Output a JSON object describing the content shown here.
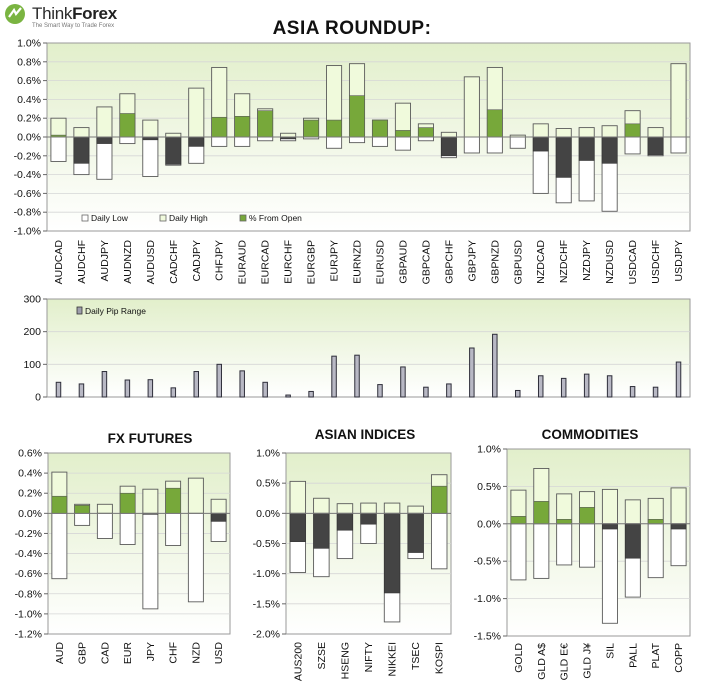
{
  "logo": {
    "brand_think": "Think",
    "brand_forex": "Forex",
    "tagline": "The Smart Way to Trade Forex"
  },
  "title": "ASIA  ROUNDUP:",
  "colors": {
    "high": "#f0fadc",
    "green": "#77a83a",
    "dark": "#444444",
    "plot_bg_top": "#e7f2d2"
  },
  "chart_data": [
    {
      "type": "bar",
      "categories": [
        "AUDCAD",
        "AUDCHF",
        "AUDJPY",
        "AUDNZD",
        "AUDUSD",
        "CADCHF",
        "CADJPY",
        "CHFJPY",
        "EURAUD",
        "EURCAD",
        "EURCHF",
        "EURGBP",
        "EURJPY",
        "EURNZD",
        "EURUSD",
        "GBPAUD",
        "GBPCAD",
        "GBPCHF",
        "GBPJPY",
        "GBPNZD",
        "GBPUSD",
        "NZDCAD",
        "NZDCHF",
        "NZDJPY",
        "NZDUSD",
        "USDCAD",
        "USDCHF",
        "USDJPY"
      ],
      "series": [
        {
          "name": "Daily Low",
          "values": [
            -0.26,
            -0.4,
            -0.45,
            -0.07,
            -0.42,
            -0.3,
            -0.28,
            -0.1,
            -0.1,
            -0.04,
            -0.04,
            -0.02,
            -0.12,
            -0.06,
            -0.1,
            -0.14,
            -0.04,
            -0.22,
            -0.17,
            -0.17,
            -0.12,
            -0.6,
            -0.7,
            -0.68,
            -0.79,
            -0.18,
            -0.2,
            -0.17
          ]
        },
        {
          "name": "Daily High",
          "values": [
            0.2,
            0.1,
            0.32,
            0.46,
            0.18,
            0.04,
            0.52,
            0.74,
            0.46,
            0.3,
            0.04,
            0.2,
            0.76,
            0.78,
            0.18,
            0.36,
            0.14,
            0.05,
            0.64,
            0.74,
            0.02,
            0.14,
            0.09,
            0.1,
            0.12,
            0.28,
            0.1,
            0.78
          ]
        },
        {
          "name": "% From Open",
          "values": [
            0.02,
            -0.28,
            -0.07,
            0.25,
            -0.03,
            -0.29,
            -0.1,
            0.21,
            0.22,
            0.28,
            -0.02,
            0.18,
            0.18,
            0.44,
            0.18,
            0.07,
            0.1,
            -0.2,
            0.0,
            0.29,
            0.0,
            -0.15,
            -0.43,
            -0.25,
            -0.28,
            0.14,
            -0.19,
            0.0
          ]
        }
      ],
      "ylim": [
        -1.0,
        1.0
      ],
      "ytick_labels": [
        "1.0%",
        "0.8%",
        "0.6%",
        "0.4%",
        "0.2%",
        "0.0%",
        "-0.2%",
        "-0.4%",
        "-0.6%",
        "-0.8%",
        "-1.0%"
      ],
      "legend": "bottom-left"
    },
    {
      "type": "bar",
      "categories": [
        "AUDCAD",
        "AUDCHF",
        "AUDJPY",
        "AUDNZD",
        "AUDUSD",
        "CADCHF",
        "CADJPY",
        "CHFJPY",
        "EURAUD",
        "EURCAD",
        "EURCHF",
        "EURGBP",
        "EURJPY",
        "EURNZD",
        "EURUSD",
        "GBPAUD",
        "GBPCAD",
        "GBPCHF",
        "GBPJPY",
        "GBPNZD",
        "GBPUSD",
        "NZDCAD",
        "NZDCHF",
        "NZDJPY",
        "NZDUSD",
        "USDCAD",
        "USDCHF",
        "USDJPY"
      ],
      "series": [
        {
          "name": "Daily Pip Range",
          "values": [
            45,
            40,
            78,
            52,
            53,
            28,
            78,
            100,
            80,
            45,
            6,
            17,
            125,
            128,
            38,
            92,
            30,
            40,
            150,
            192,
            20,
            65,
            57,
            70,
            65,
            32,
            30,
            107
          ]
        }
      ],
      "ylim": [
        0,
        300
      ],
      "ytick_labels": [
        "300",
        "200",
        "100",
        "0"
      ],
      "legend": "top-left"
    },
    {
      "type": "bar",
      "title": "FX FUTURES",
      "categories": [
        "AUD",
        "GBP",
        "CAD",
        "EUR",
        "JPY",
        "CHF",
        "NZD",
        "USD"
      ],
      "series": [
        {
          "name": "Daily Low",
          "values": [
            -0.65,
            -0.12,
            -0.25,
            -0.31,
            -0.95,
            -0.32,
            -0.88,
            -0.28
          ]
        },
        {
          "name": "Daily High",
          "values": [
            0.41,
            0.09,
            0.09,
            0.27,
            0.24,
            0.32,
            0.35,
            0.14
          ]
        },
        {
          "name": "% From Open",
          "values": [
            0.17,
            0.08,
            0.0,
            0.2,
            -0.01,
            0.25,
            0.0,
            -0.08
          ]
        }
      ],
      "ylim": [
        -1.2,
        0.6
      ],
      "ytick_labels": [
        "0.6%",
        "0.4%",
        "0.2%",
        "0.0%",
        "-0.2%",
        "-0.4%",
        "-0.6%",
        "-0.8%",
        "-1.0%",
        "-1.2%"
      ]
    },
    {
      "type": "bar",
      "title": "ASIAN INDICES",
      "categories": [
        "AUS200",
        "SZSE",
        "HSENG",
        "NIFTY",
        "NIKKEI",
        "TSEC",
        "KOSPI"
      ],
      "series": [
        {
          "name": "Daily Low",
          "values": [
            -0.98,
            -1.05,
            -0.75,
            -0.5,
            -1.8,
            -0.75,
            -0.92
          ]
        },
        {
          "name": "Daily High",
          "values": [
            0.53,
            0.25,
            0.16,
            0.17,
            0.17,
            0.12,
            0.64
          ]
        },
        {
          "name": "% From Open",
          "values": [
            -0.47,
            -0.58,
            -0.28,
            -0.18,
            -1.32,
            -0.65,
            0.45
          ]
        }
      ],
      "ylim": [
        -2.0,
        1.0
      ],
      "ytick_labels": [
        "1.0%",
        "0.5%",
        "0.0%",
        "-0.5%",
        "-1.0%",
        "-1.5%",
        "-2.0%"
      ]
    },
    {
      "type": "bar",
      "title": "COMMODITIES",
      "categories": [
        "GOLD",
        "GLD A$",
        "GLD E€",
        "GLD J¥",
        "SIL",
        "PALL",
        "PLAT",
        "COPP"
      ],
      "series": [
        {
          "name": "Daily Low",
          "values": [
            -0.75,
            -0.73,
            -0.55,
            -0.58,
            -1.33,
            -0.98,
            -0.72,
            -0.56
          ]
        },
        {
          "name": "Daily High",
          "values": [
            0.45,
            0.74,
            0.4,
            0.43,
            0.46,
            0.32,
            0.34,
            0.48
          ]
        },
        {
          "name": "% From Open",
          "values": [
            0.1,
            0.3,
            0.06,
            0.22,
            -0.07,
            -0.46,
            0.06,
            -0.07
          ]
        }
      ],
      "ylim": [
        -1.5,
        1.0
      ],
      "ytick_labels": [
        "1.0%",
        "0.5%",
        "0.0%",
        "-0.5%",
        "-1.0%",
        "-1.5%"
      ]
    }
  ]
}
